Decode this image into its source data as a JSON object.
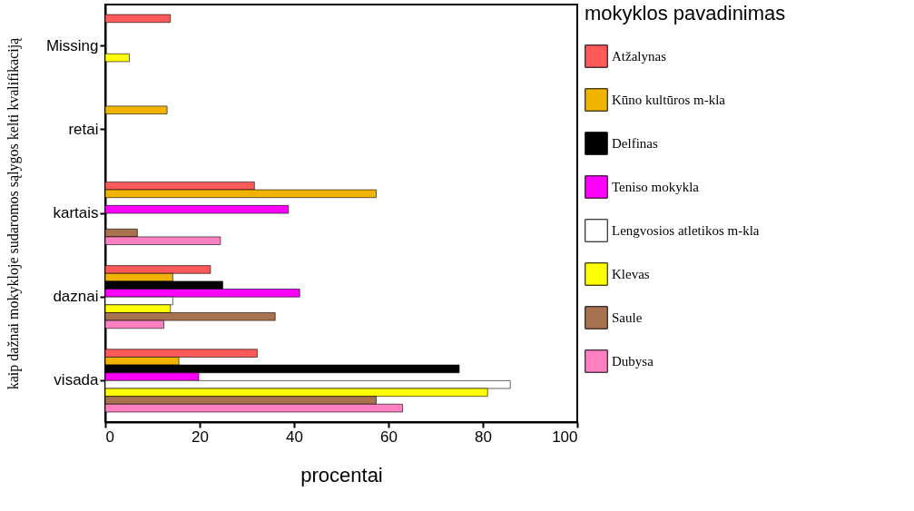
{
  "chart_data": {
    "type": "bar",
    "orientation": "horizontal",
    "categories": [
      "Missing",
      "retai",
      "kartais",
      "daznai",
      "visada"
    ],
    "xlabel": "procentai",
    "ylabel": "kaip dažnai mokykloje sudaromos sąlygos kelti kvalifikaciją",
    "legend_title": "mokyklos pavadinimas",
    "xlim": [
      0,
      100
    ],
    "xticks": [
      0,
      20,
      40,
      60,
      80,
      100
    ],
    "grid": false,
    "legend": "right",
    "series": [
      {
        "name": "Atžalynas",
        "color": "#ff5a5a",
        "values": [
          13.8,
          null,
          31.6,
          22.3,
          32.2
        ]
      },
      {
        "name": "Kūno kultūros m-kla",
        "color": "#f0b400",
        "values": [
          null,
          13.1,
          57.4,
          14.3,
          15.6
        ]
      },
      {
        "name": "Delfinas",
        "color": "#000000",
        "values": [
          null,
          null,
          null,
          24.9,
          75.0
        ]
      },
      {
        "name": "Teniso mokykla",
        "color": "#ff00ff",
        "values": [
          null,
          null,
          38.8,
          41.2,
          19.8
        ]
      },
      {
        "name": "Lengvosios atletikos m-kla",
        "color": "#ffffff",
        "values": [
          null,
          null,
          null,
          14.3,
          85.8
        ]
      },
      {
        "name": "Klevas",
        "color": "#ffff00",
        "values": [
          5.1,
          null,
          null,
          13.8,
          81.0
        ]
      },
      {
        "name": "Saule",
        "color": "#a87250",
        "values": [
          null,
          null,
          6.8,
          36.0,
          57.4
        ]
      },
      {
        "name": "Dubysa",
        "color": "#ff80c0",
        "values": [
          null,
          null,
          24.4,
          12.4,
          63.0
        ]
      }
    ]
  }
}
